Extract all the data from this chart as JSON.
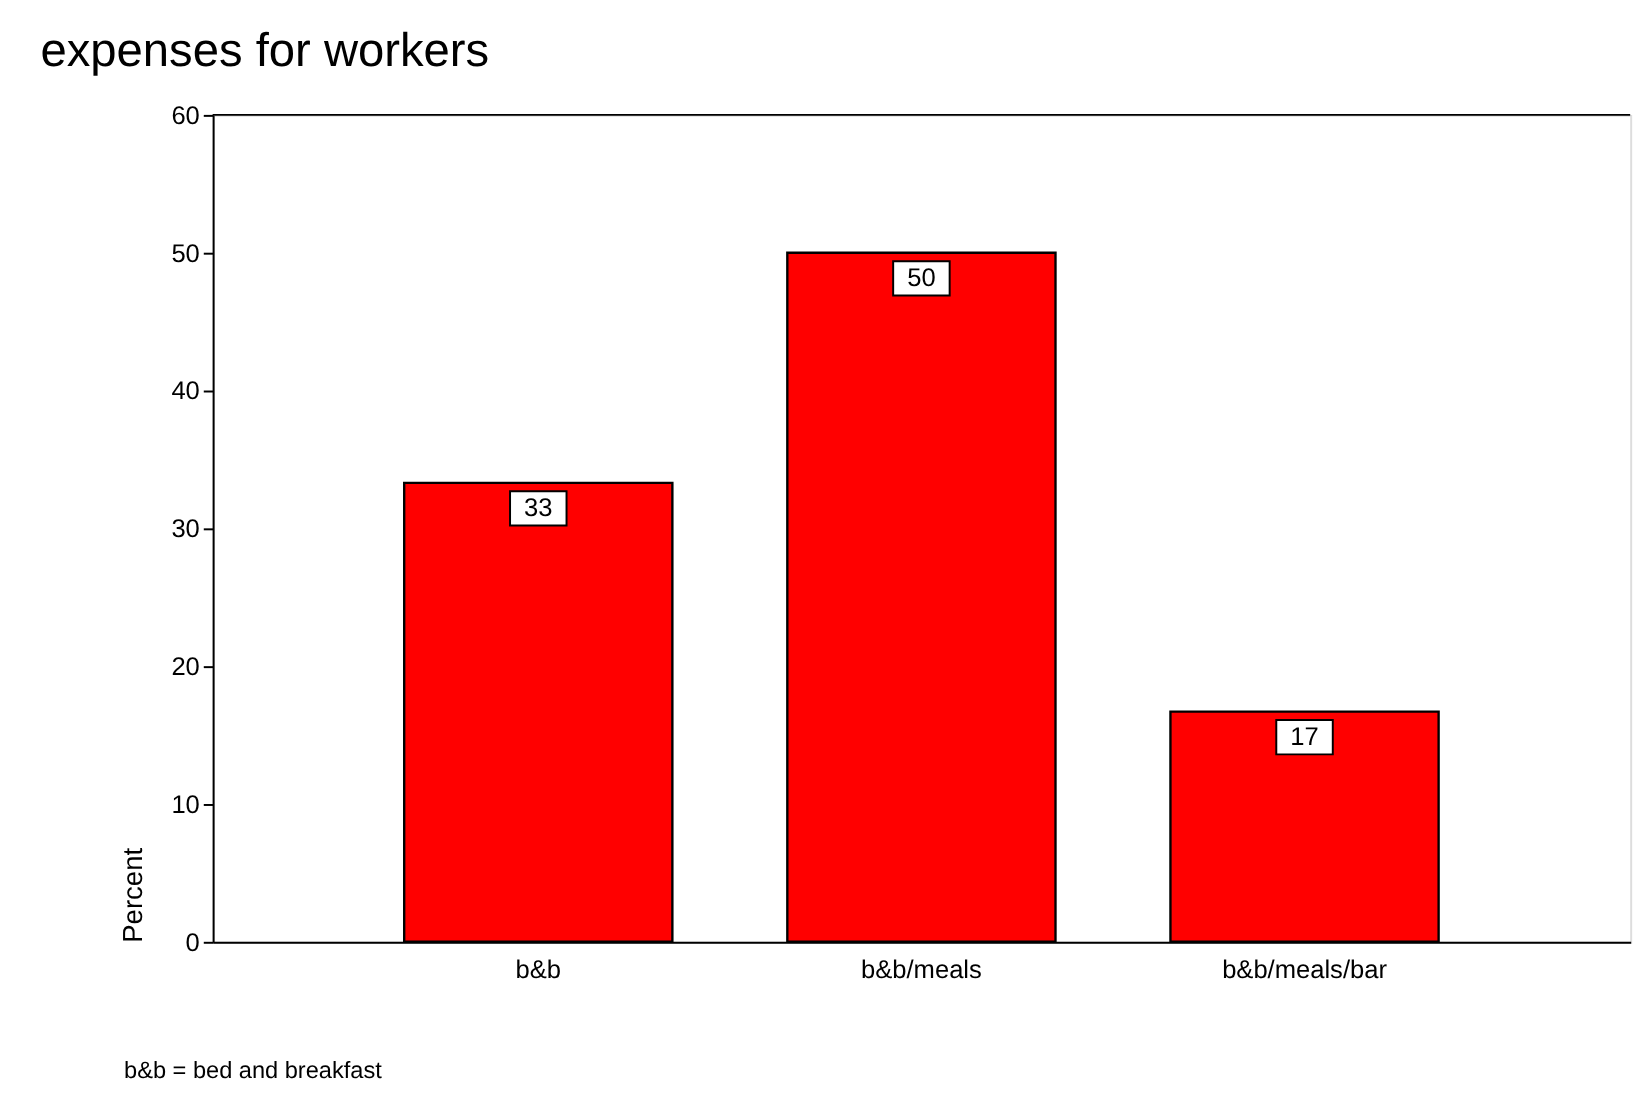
{
  "chart_data": {
    "type": "bar",
    "title": "expenses for workers",
    "ylabel": "Percent",
    "categories": [
      "b&b",
      "b&b/meals",
      "b&b/meals/bar"
    ],
    "values": [
      33.3,
      50,
      16.7
    ],
    "value_labels": [
      "33",
      "50",
      "17"
    ],
    "color": "#ff0000",
    "ylim": [
      0,
      60
    ],
    "yticks": [
      0,
      10,
      20,
      30,
      40,
      50,
      60
    ],
    "grid": false,
    "annotations": [
      "b&b = bed and breakfast"
    ]
  }
}
